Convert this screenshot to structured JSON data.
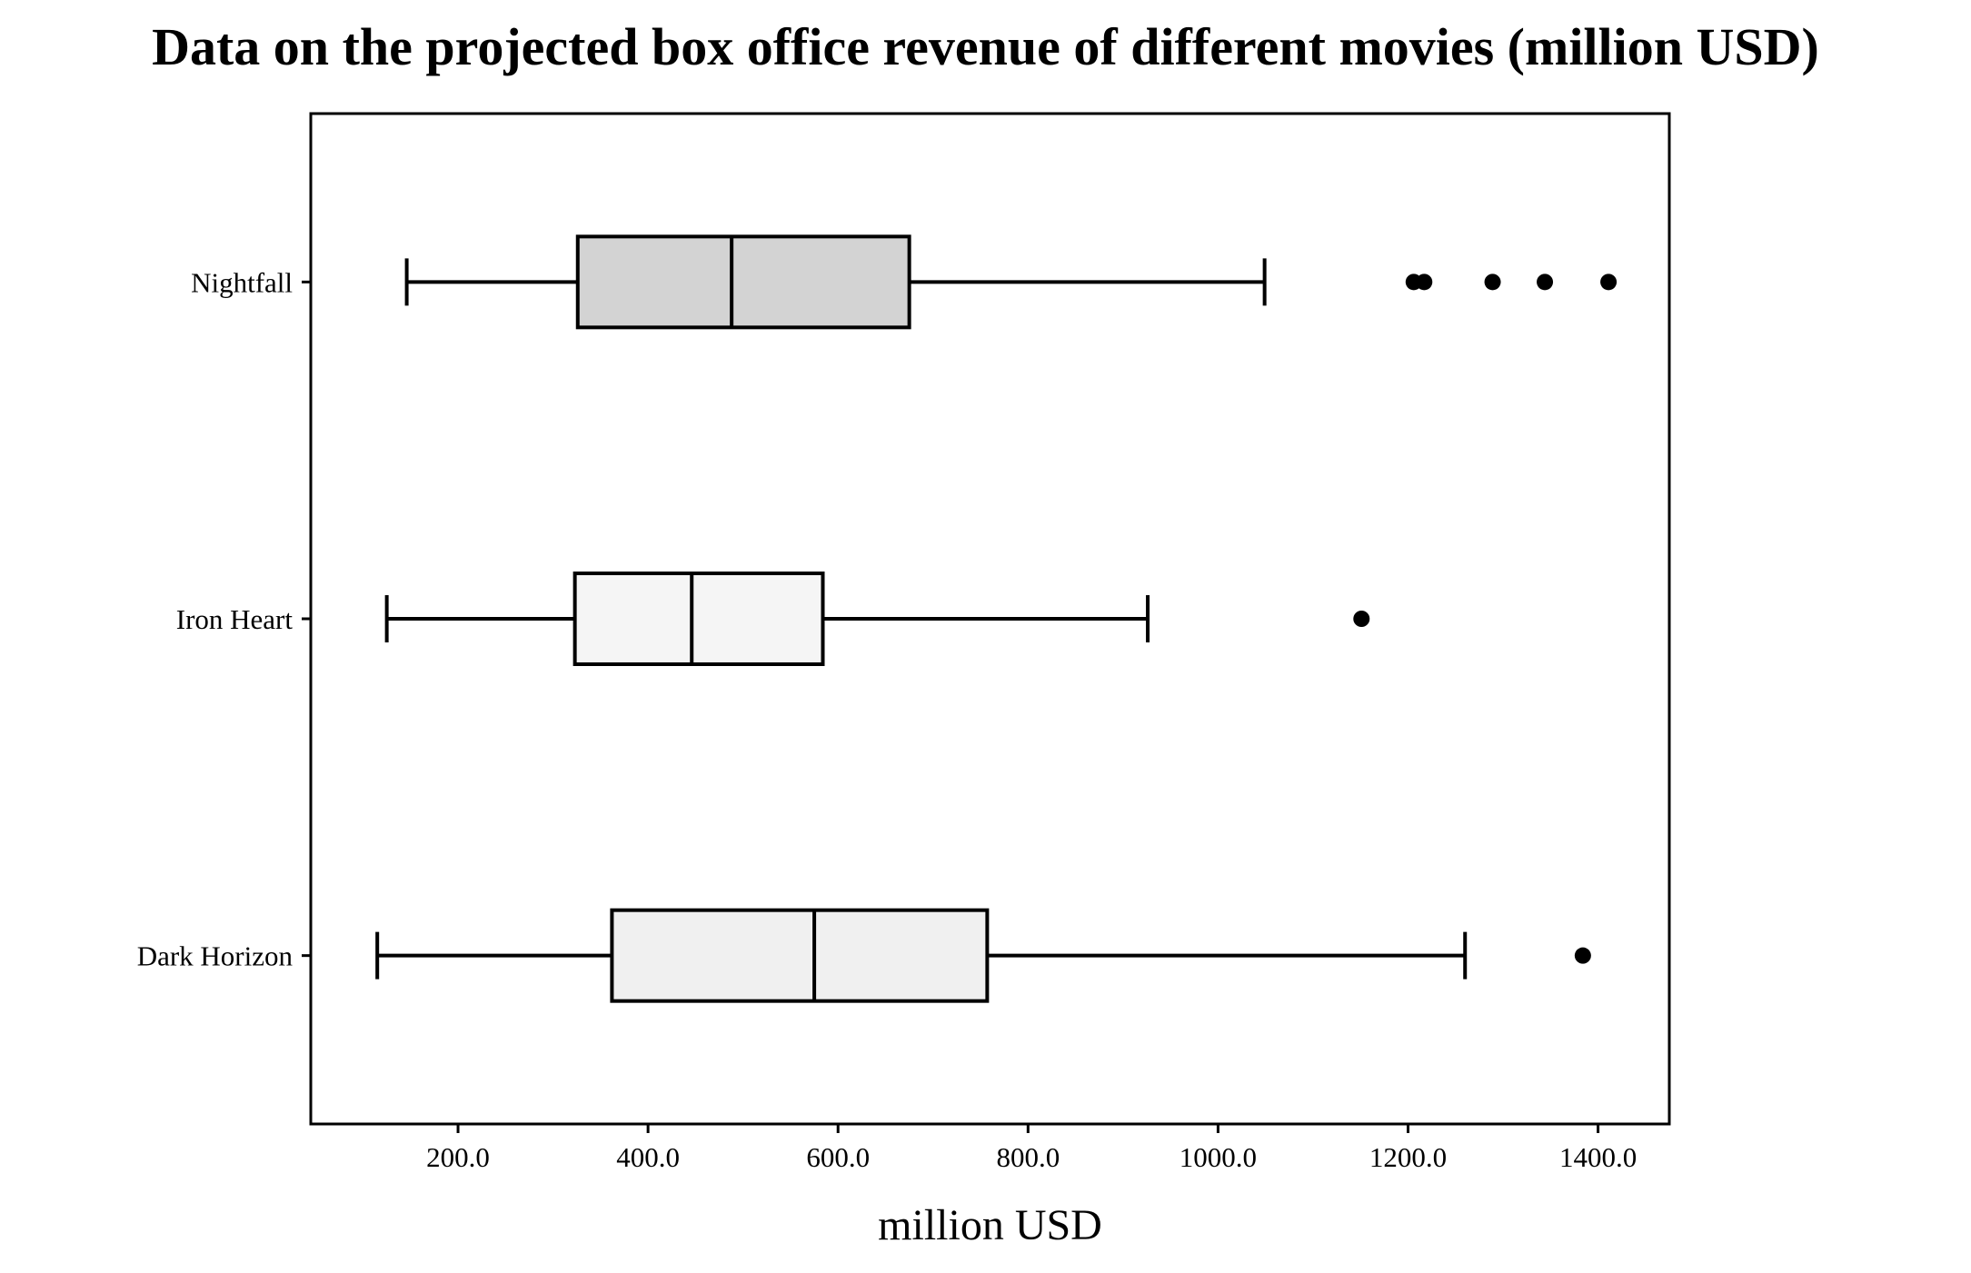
{
  "chart_data": {
    "type": "boxplot",
    "orientation": "horizontal",
    "title": "Data on the projected box office revenue of different movies (million USD)",
    "xlabel": "million USD",
    "ylabel": "",
    "xlim": [
      45,
      1475
    ],
    "x_ticks": [
      200,
      400,
      600,
      800,
      1000,
      1200,
      1400
    ],
    "x_tick_labels": [
      "200.0",
      "400.0",
      "600.0",
      "800.0",
      "1000.0",
      "1200.0",
      "1400.0"
    ],
    "grid": false,
    "categories": [
      "Dark Horizon",
      "Iron Heart",
      "Nightfall"
    ],
    "series": [
      {
        "category": "Dark Horizon",
        "whisker_low": 115,
        "q1": 362,
        "median": 575,
        "q3": 757,
        "whisker_high": 1260,
        "outliers": [
          1384
        ],
        "fill": "#f0f0f0"
      },
      {
        "category": "Iron Heart",
        "whisker_low": 125,
        "q1": 323,
        "median": 446,
        "q3": 584,
        "whisker_high": 926,
        "outliers": [
          1151
        ],
        "fill": "#f5f5f5"
      },
      {
        "category": "Nightfall",
        "whisker_low": 146,
        "q1": 326,
        "median": 488,
        "q3": 675,
        "whisker_high": 1049,
        "outliers": [
          1206,
          1217,
          1289,
          1344,
          1411
        ],
        "fill": "#d3d3d3"
      }
    ]
  }
}
